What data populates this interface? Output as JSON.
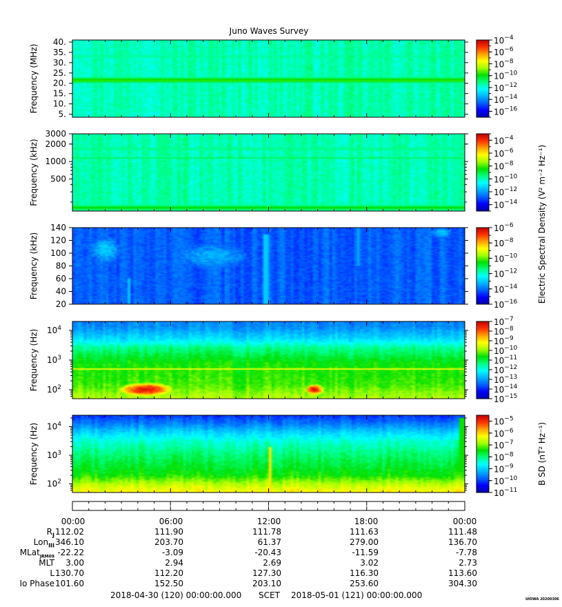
{
  "title": "Juno Waves Survey",
  "colors": {
    "colormap": [
      "#0000aa",
      "#0000ff",
      "#0060ff",
      "#00b4ff",
      "#00ffff",
      "#00ff80",
      "#00e000",
      "#a0ff00",
      "#ffff00",
      "#ffa000",
      "#ff3000",
      "#c00000"
    ]
  },
  "chart_data": [
    {
      "type": "heatmap",
      "panel": 1,
      "ylabel": "Frequency (MHz)",
      "yscale": "linear",
      "ylim": [
        3.5,
        41
      ],
      "yticks": [
        {
          "v": 5,
          "label": "5."
        },
        {
          "v": 10,
          "label": "10."
        },
        {
          "v": 15,
          "label": "15."
        },
        {
          "v": 20,
          "label": "20."
        },
        {
          "v": 25,
          "label": "25."
        },
        {
          "v": 30,
          "label": "30."
        },
        {
          "v": 35,
          "label": "35."
        },
        {
          "v": 40,
          "label": "40."
        }
      ],
      "colorbar": {
        "label": "",
        "log_range": [
          -17,
          -4
        ],
        "ticks": [
          -4,
          -6,
          -8,
          -10,
          -12,
          -14,
          -16
        ]
      },
      "background_level": 0.42,
      "features": [
        {
          "kind": "band",
          "y": 21.5,
          "width": 1.5,
          "level": 0.6
        },
        {
          "kind": "band",
          "y": 9.0,
          "width": 0.8,
          "level": 0.38
        },
        {
          "kind": "band",
          "y": 33.0,
          "width": 2.0,
          "level": 0.45
        }
      ]
    },
    {
      "type": "heatmap",
      "panel": 2,
      "ylabel": "Frequency (kHz)",
      "yscale": "log",
      "ylim": [
        140,
        3000
      ],
      "yticks": [
        {
          "v": 500,
          "label": "500"
        },
        {
          "v": 1000,
          "label": "1000"
        },
        {
          "v": 2000,
          "label": "2000"
        },
        {
          "v": 3000,
          "label": "3000"
        }
      ],
      "colorbar": {
        "label": "Electric Spectral Density (V² m⁻² Hz⁻¹)",
        "log_range": [
          -15,
          -3
        ],
        "ticks": [
          -4,
          -6,
          -8,
          -10,
          -12,
          -14
        ]
      },
      "background_level": 0.42,
      "features": [
        {
          "kind": "band",
          "y": 1650,
          "width": 120,
          "level": 0.5
        },
        {
          "kind": "band",
          "y": 1150,
          "width": 70,
          "level": 0.48
        },
        {
          "kind": "band",
          "y": 160,
          "width": 25,
          "level": 0.55
        }
      ]
    },
    {
      "type": "heatmap",
      "panel": 3,
      "ylabel": "Frequency (kHz)",
      "yscale": "linear",
      "ylim": [
        20,
        140
      ],
      "yticks": [
        {
          "v": 20,
          "label": "20"
        },
        {
          "v": 40,
          "label": "40"
        },
        {
          "v": 60,
          "label": "60"
        },
        {
          "v": 80,
          "label": "80"
        },
        {
          "v": 100,
          "label": "100"
        },
        {
          "v": 120,
          "label": "120"
        },
        {
          "v": 140,
          "label": "140"
        }
      ],
      "colorbar": {
        "label": "",
        "log_range": [
          -16,
          -6
        ],
        "ticks": [
          -6,
          -8,
          -10,
          -12,
          -14,
          -16
        ]
      },
      "background_level": 0.18,
      "features": [
        {
          "kind": "blob",
          "t": 2.0,
          "y": 105,
          "dt": 0.9,
          "dy": 20,
          "level": 0.3
        },
        {
          "kind": "blob",
          "t": 8.5,
          "y": 95,
          "dt": 2.2,
          "dy": 20,
          "level": 0.27
        },
        {
          "kind": "blob",
          "t": 22.6,
          "y": 132,
          "dt": 0.6,
          "dy": 8,
          "level": 0.3
        },
        {
          "kind": "streak",
          "t": 3.5,
          "y0": 20,
          "y1": 60,
          "level": 0.3
        },
        {
          "kind": "streak",
          "t": 11.8,
          "y0": 20,
          "y1": 130,
          "level": 0.3
        },
        {
          "kind": "streak",
          "t": 17.5,
          "y0": 80,
          "y1": 140,
          "level": 0.26
        }
      ]
    },
    {
      "type": "heatmap",
      "panel": 4,
      "ylabel": "Frequency (Hz)",
      "yscale": "log",
      "ylim": [
        50,
        20000
      ],
      "yticks": [
        {
          "v": 100,
          "label": "10",
          "sup": "2"
        },
        {
          "v": 1000,
          "label": "10",
          "sup": "3"
        },
        {
          "v": 10000,
          "label": "10",
          "sup": "4"
        }
      ],
      "colorbar": {
        "label": "",
        "log_range": [
          -15,
          -7
        ],
        "ticks": [
          -7,
          -8,
          -9,
          -10,
          -11,
          -12,
          -13,
          -14,
          -15
        ]
      },
      "profile": [
        [
          50,
          0.66
        ],
        [
          150,
          0.58
        ],
        [
          800,
          0.55
        ],
        [
          2500,
          0.45
        ],
        [
          5000,
          0.33
        ],
        [
          12000,
          0.24
        ],
        [
          20000,
          0.22
        ]
      ],
      "features": [
        {
          "kind": "blob",
          "t": 4.5,
          "y": 100,
          "dt": 1.8,
          "dy": 0.25,
          "level": 0.95
        },
        {
          "kind": "blob",
          "t": 14.8,
          "y": 100,
          "dt": 0.6,
          "dy": 0.2,
          "level": 0.95
        },
        {
          "kind": "band",
          "y": 500,
          "width": 0.05,
          "level": 0.72
        }
      ]
    },
    {
      "type": "heatmap",
      "panel": 5,
      "ylabel": "Frequency (Hz)",
      "yscale": "log",
      "ylim": [
        50,
        25000
      ],
      "yticks": [
        {
          "v": 100,
          "label": "10",
          "sup": "2"
        },
        {
          "v": 1000,
          "label": "10",
          "sup": "3"
        },
        {
          "v": 10000,
          "label": "10",
          "sup": "4"
        }
      ],
      "colorbar": {
        "label": "B SD (nT² Hz⁻¹)",
        "log_range": [
          -11,
          -4.5
        ],
        "ticks": [
          -5,
          -6,
          -7,
          -8,
          -9,
          -10,
          -11
        ]
      },
      "profile": [
        [
          50,
          0.74
        ],
        [
          100,
          0.66
        ],
        [
          200,
          0.55
        ],
        [
          1000,
          0.47
        ],
        [
          3000,
          0.4
        ],
        [
          6000,
          0.32
        ],
        [
          12000,
          0.22
        ],
        [
          25000,
          0.14
        ]
      ],
      "features": [
        {
          "kind": "streak",
          "t": 12.1,
          "y0": 50,
          "y1": 2000,
          "level": 0.75
        },
        {
          "kind": "streak",
          "t": 23.8,
          "y0": 50,
          "y1": 20000,
          "level": 0.55
        }
      ]
    }
  ],
  "ephemeris": {
    "times": [
      "00:00",
      "06:00",
      "12:00",
      "18:00",
      "00:00"
    ],
    "rows": [
      {
        "name": "R",
        "sub": "J",
        "values": [
          "112.02",
          "111.90",
          "111.78",
          "111.63",
          "111.48"
        ]
      },
      {
        "name": "Lon",
        "sub": "III",
        "values": [
          "346.10",
          "203.70",
          "61.37",
          "279.00",
          "136.70"
        ]
      },
      {
        "name": "MLat",
        "sub": "JRM09",
        "values": [
          "-22.22",
          "-3.09",
          "-20.43",
          "-11.59",
          "-7.78"
        ]
      },
      {
        "name": "MLT",
        "sub": "",
        "values": [
          "3.00",
          "2.94",
          "2.69",
          "3.02",
          "2.73"
        ]
      },
      {
        "name": "L",
        "sub": "",
        "values": [
          "130.70",
          "112.20",
          "127.30",
          "116.30",
          "113.60"
        ]
      },
      {
        "name": "Io Phase",
        "sub": "",
        "values": [
          "101.60",
          "152.50",
          "203.10",
          "253.60",
          "304.30"
        ]
      }
    ]
  },
  "footer": {
    "start": "2018-04-30 (120) 00:00:00.000",
    "axis": "SCET",
    "end": "2018-05-01 (121) 00:00:00.000"
  },
  "stamp": "UIOWA 20200306"
}
